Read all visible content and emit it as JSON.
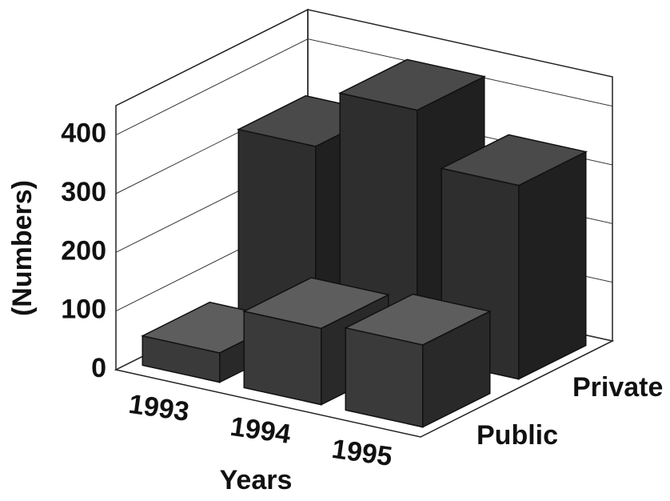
{
  "chart_data": {
    "type": "bar3d",
    "categories": [
      "1993",
      "1994",
      "1995"
    ],
    "series": [
      {
        "name": "Public",
        "color": "#3a3a3a",
        "values": [
          50,
          130,
          140
        ]
      },
      {
        "name": "Private",
        "color": "#2e2e2e",
        "values": [
          320,
          420,
          330
        ]
      }
    ],
    "ylim": [
      0,
      450
    ],
    "yticks": [
      0,
      100,
      200,
      300,
      400
    ],
    "y_label": "(Numbers)",
    "x_label": "Years",
    "grid": true
  }
}
